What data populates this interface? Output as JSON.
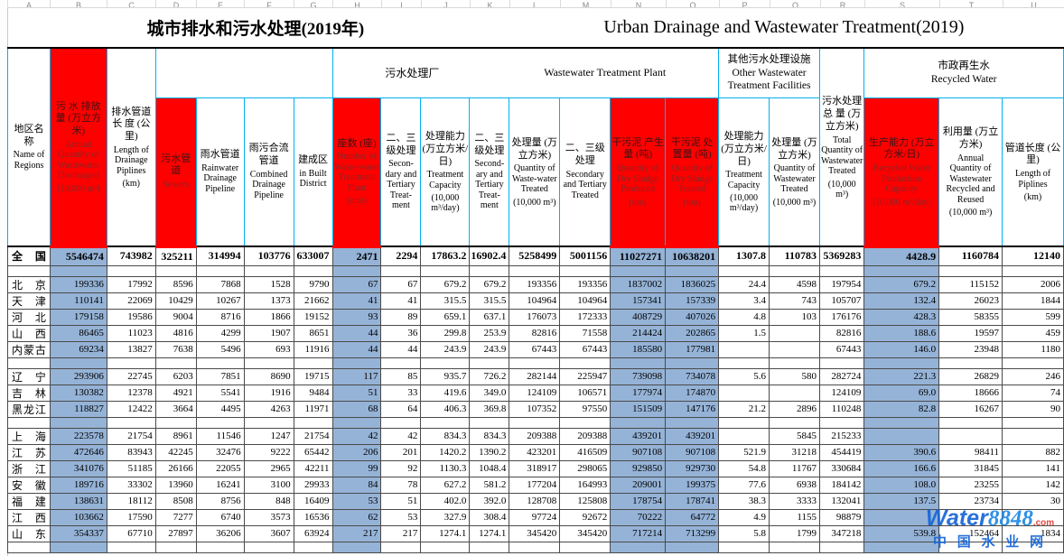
{
  "titles": {
    "zh": "城市排水和污水处理(2019年)",
    "en": "Urban Drainage and Wastewater Treatment(2019)"
  },
  "column_letters": [
    "A",
    "B",
    "C",
    "D",
    "E",
    "F",
    "G",
    "H",
    "I",
    "J",
    "K",
    "L",
    "M",
    "N",
    "O",
    "P",
    "Q",
    "R",
    "S",
    "T",
    "U"
  ],
  "watermark": {
    "brand": "Water",
    "number": "8848",
    "dotcom": ".com",
    "sub": "中 国 水 业 网"
  },
  "colors": {
    "highlight_red": "#fe0000",
    "highlight_blue_cell": "#95b3d7",
    "header_border_cyan": "#00b0f0",
    "red_cell_text": "#8c2424"
  },
  "table": {
    "region_header": {
      "zh": "地区名称",
      "en": "Name of Regions"
    },
    "groups": {
      "pipes_blank": {
        "zh": "",
        "en": ""
      },
      "wwtp": {
        "zh": "污水处理厂",
        "en": "Wastewater Treatment Plant"
      },
      "other": {
        "zh": "其他污水处理设施",
        "en": "Other Wastewater Treatment Facilities"
      },
      "recycled": {
        "zh": "市政再生水",
        "en": "Recycled Water"
      }
    },
    "columns": [
      {
        "zh": "污 水 排放量 (万立方米)",
        "en": "Annual Quantity of Wastewater Discharged",
        "unit": "(10,000 m³)",
        "red": true,
        "highlight": true,
        "tall": true
      },
      {
        "zh": "排水管道 长  度 (公里)",
        "en": "Length of Drainage Piplines",
        "unit": "(km)",
        "tall": true
      },
      {
        "zh": "污水管道",
        "en": "Sewers",
        "red": true
      },
      {
        "zh": "雨水管道",
        "en": "Rainwater Drainage Pipeline"
      },
      {
        "zh": "雨污合流管道",
        "en": "Combined Drainage Pipeline"
      },
      {
        "zh": "建成区",
        "en": "in Built District"
      },
      {
        "zh": "座数 (座)",
        "en": "Number of Waste-water Treatment Plant",
        "unit": "(unit)",
        "red": true,
        "highlight": true
      },
      {
        "zh": "二、三级处理",
        "en": "Secon-dary and Tertiary Treat-ment"
      },
      {
        "zh": "处理能力 (万立方米/日)",
        "en": "Treatment Capacity",
        "unit": "(10,000 m³/day)"
      },
      {
        "zh": "二、三级处理",
        "en": "Second-ary and Tertiary Treat-ment"
      },
      {
        "zh": "处理量 (万立方米)",
        "en": "Quantity of Waste-water Treated",
        "unit": "(10,000 m³)"
      },
      {
        "zh": "二、三级处理",
        "en": "Secondary and Tertiary Treated"
      },
      {
        "zh": "干污泥 产生量 (吨)",
        "en": "Quantity of Dry Sludge Produced",
        "unit": "(ton)",
        "red": true,
        "highlight": true
      },
      {
        "zh": "干污泥 处置量 (吨)",
        "en": "Quantity of Dry Sludge Treated",
        "unit": "(ton)",
        "red": true,
        "highlight": true
      },
      {
        "zh": "处理能力 (万立方米/日)",
        "en": "Treatment Capacity",
        "unit": "(10,000 m³/day)"
      },
      {
        "zh": "处理量 (万立方米)",
        "en": "Quantity of Wastewater Treated",
        "unit": "(10,000 m³)"
      },
      {
        "zh": "污水处理 总   量 (万立方米)",
        "en": "Total Quantity of Wastewater Treated",
        "unit": "(10,000 m³)",
        "tall": true
      },
      {
        "zh": "生产能力 (万立方米/日)",
        "en": "Recycled Water Production Capacity",
        "unit": "(10,000 m³/day)",
        "red": true,
        "highlight": true
      },
      {
        "zh": "利用量 (万立方米)",
        "en": "Annual Quantity of Wastewater Recycled and Reused",
        "unit": "(10,000 m³)"
      },
      {
        "zh": "管道长度 (公里)",
        "en": "Length of Piplines",
        "unit": "(km)"
      }
    ],
    "rows": [
      {
        "name": "全国",
        "bold": true,
        "values": [
          "5546474",
          "743982",
          "325211",
          "314994",
          "103776",
          "633007",
          "2471",
          "2294",
          "17863.2",
          "16902.4",
          "5258499",
          "5001156",
          "11027271",
          "10638201",
          "1307.8",
          "110783",
          "5369283",
          "4428.9",
          "1160784",
          "12140"
        ]
      },
      {
        "blank": true
      },
      {
        "name": "北京",
        "values": [
          "199336",
          "17992",
          "8596",
          "7868",
          "1528",
          "9790",
          "67",
          "67",
          "679.2",
          "679.2",
          "193356",
          "193356",
          "1837002",
          "1836025",
          "24.4",
          "4598",
          "197954",
          "679.2",
          "115152",
          "2006"
        ]
      },
      {
        "name": "天津",
        "values": [
          "110141",
          "22069",
          "10429",
          "10267",
          "1373",
          "21662",
          "41",
          "41",
          "315.5",
          "315.5",
          "104964",
          "104964",
          "157341",
          "157339",
          "3.4",
          "743",
          "105707",
          "132.4",
          "26023",
          "1844"
        ]
      },
      {
        "name": "河北",
        "values": [
          "179158",
          "19586",
          "9004",
          "8716",
          "1866",
          "19152",
          "93",
          "89",
          "659.1",
          "637.1",
          "176073",
          "172333",
          "408729",
          "407026",
          "4.8",
          "103",
          "176176",
          "428.3",
          "58355",
          "599"
        ]
      },
      {
        "name": "山西",
        "values": [
          "86465",
          "11023",
          "4816",
          "4299",
          "1907",
          "8651",
          "44",
          "36",
          "299.8",
          "253.9",
          "82816",
          "71558",
          "214424",
          "202865",
          "1.5",
          "",
          "82816",
          "188.6",
          "19597",
          "459"
        ]
      },
      {
        "name": "内蒙古",
        "values": [
          "69234",
          "13827",
          "7638",
          "5496",
          "693",
          "11916",
          "44",
          "44",
          "243.9",
          "243.9",
          "67443",
          "67443",
          "185580",
          "177981",
          "",
          "",
          "67443",
          "146.0",
          "23948",
          "1180"
        ]
      },
      {
        "blank": true
      },
      {
        "name": "辽宁",
        "values": [
          "293906",
          "22745",
          "6203",
          "7851",
          "8690",
          "19715",
          "117",
          "85",
          "935.7",
          "726.2",
          "282144",
          "225947",
          "739098",
          "734078",
          "5.6",
          "580",
          "282724",
          "221.3",
          "26829",
          "246"
        ]
      },
      {
        "name": "吉林",
        "values": [
          "130382",
          "12378",
          "4921",
          "5541",
          "1916",
          "9484",
          "51",
          "33",
          "419.6",
          "349.0",
          "124109",
          "106571",
          "177974",
          "174870",
          "",
          "",
          "124109",
          "69.0",
          "18666",
          "74"
        ]
      },
      {
        "name": "黑龙江",
        "values": [
          "118827",
          "12422",
          "3664",
          "4495",
          "4263",
          "11971",
          "68",
          "64",
          "406.3",
          "369.8",
          "107352",
          "97550",
          "151509",
          "147176",
          "21.2",
          "2896",
          "110248",
          "82.8",
          "16267",
          "90"
        ]
      },
      {
        "blank": true
      },
      {
        "name": "上海",
        "values": [
          "223578",
          "21754",
          "8961",
          "11546",
          "1247",
          "21754",
          "42",
          "42",
          "834.3",
          "834.3",
          "209388",
          "209388",
          "439201",
          "439201",
          "",
          "5845",
          "215233",
          "",
          "",
          ""
        ]
      },
      {
        "name": "江苏",
        "values": [
          "472646",
          "83943",
          "42245",
          "32476",
          "9222",
          "65442",
          "206",
          "201",
          "1420.2",
          "1390.2",
          "423201",
          "416509",
          "907108",
          "907108",
          "521.9",
          "31218",
          "454419",
          "390.6",
          "98411",
          "882"
        ]
      },
      {
        "name": "浙江",
        "values": [
          "341076",
          "51185",
          "26166",
          "22055",
          "2965",
          "42211",
          "99",
          "92",
          "1130.3",
          "1048.4",
          "318917",
          "298065",
          "929850",
          "929730",
          "54.8",
          "11767",
          "330684",
          "166.6",
          "31845",
          "141"
        ]
      },
      {
        "name": "安徽",
        "values": [
          "189716",
          "33302",
          "13960",
          "16241",
          "3100",
          "29933",
          "84",
          "78",
          "627.2",
          "581.2",
          "177204",
          "164993",
          "209001",
          "199375",
          "77.6",
          "6938",
          "184142",
          "108.0",
          "23255",
          "142"
        ]
      },
      {
        "name": "福建",
        "values": [
          "138631",
          "18112",
          "8508",
          "8756",
          "848",
          "16409",
          "53",
          "51",
          "402.0",
          "392.0",
          "128708",
          "125808",
          "178754",
          "178741",
          "38.3",
          "3333",
          "132041",
          "137.5",
          "23734",
          "30"
        ]
      },
      {
        "name": "江西",
        "values": [
          "103662",
          "17590",
          "7277",
          "6740",
          "3573",
          "16536",
          "62",
          "53",
          "327.9",
          "308.4",
          "97724",
          "92672",
          "70222",
          "64772",
          "4.9",
          "1155",
          "98879",
          "",
          "",
          ""
        ]
      },
      {
        "name": "山东",
        "values": [
          "354337",
          "67710",
          "27897",
          "36206",
          "3607",
          "63924",
          "217",
          "217",
          "1274.1",
          "1274.1",
          "345420",
          "345420",
          "717214",
          "713299",
          "5.8",
          "1799",
          "347218",
          "539.8",
          "152464",
          "1834"
        ]
      },
      {
        "blank": true
      }
    ]
  }
}
